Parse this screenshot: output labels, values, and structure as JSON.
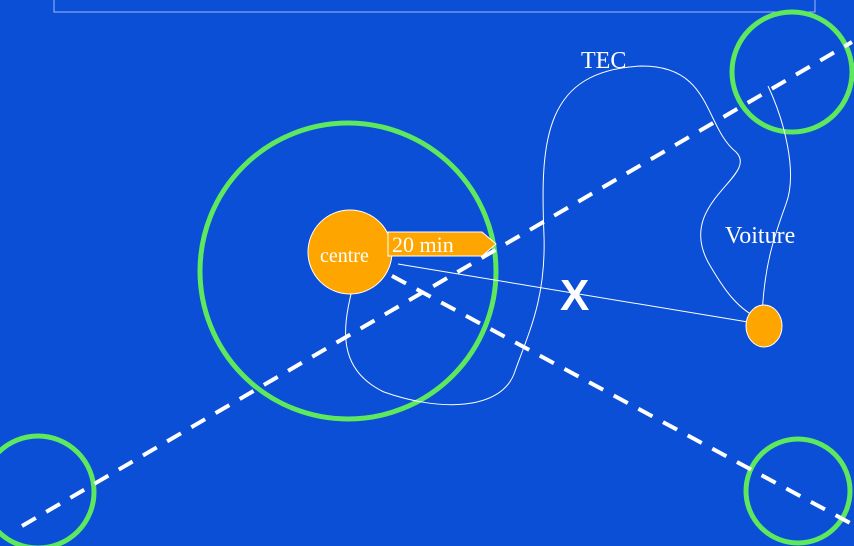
{
  "colors": {
    "background": "#0a4fd6",
    "zone_ring": "#5ee85e",
    "node_fill": "#ffa500",
    "route_line": "#ffffff",
    "axis_dash": "#ffffff",
    "frame": "#9fb8ff"
  },
  "labels": {
    "tec": "TEC",
    "voiture": "Voiture",
    "centre": "centre",
    "time_arrow": "20 min",
    "cross_mark": "X"
  },
  "icons": {
    "cross_mark": "x-mark-icon",
    "time_arrow": "arrow-right-icon"
  }
}
